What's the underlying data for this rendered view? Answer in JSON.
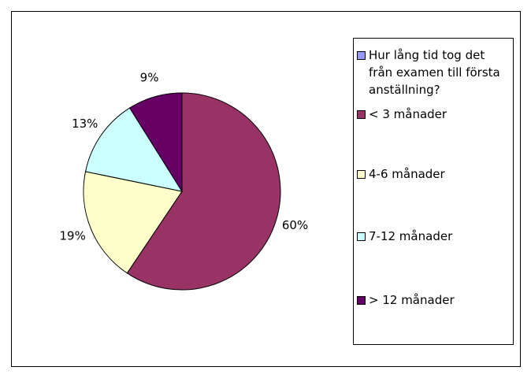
{
  "chart_data": {
    "type": "pie",
    "legend_header": {
      "label": "Hur lång tid tog det från examen till första anställning?",
      "color": "#9999ff"
    },
    "categories": [
      "< 3 månader",
      "4-6 månader",
      "7-12 månader",
      "> 12 månader"
    ],
    "values": [
      60,
      19,
      13,
      9
    ],
    "value_labels": [
      "60%",
      "19%",
      "13%",
      "9%"
    ],
    "colors": [
      "#993366",
      "#ffffcc",
      "#ccffff",
      "#660066"
    ],
    "legend": "right"
  }
}
